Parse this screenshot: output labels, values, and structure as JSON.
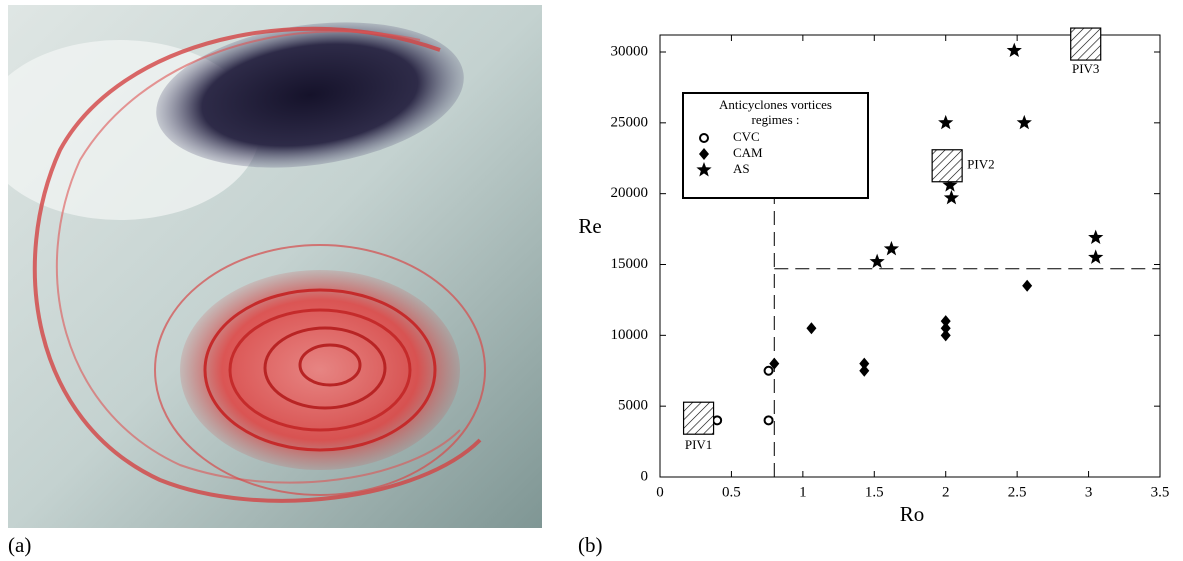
{
  "panel_labels": [
    "(a)",
    "(b)"
  ],
  "chart_data": {
    "type": "scatter",
    "x_label": "Ro",
    "y_label": "Re",
    "xlim": [
      0,
      3.5
    ],
    "ylim": [
      0,
      31200
    ],
    "xticks": [
      0,
      0.5,
      1,
      1.5,
      2,
      2.5,
      3,
      3.5
    ],
    "yticks": [
      0,
      5000,
      10000,
      15000,
      20000,
      25000,
      30000
    ],
    "legend_title": [
      "Anticyclones vortices",
      "regimes :"
    ],
    "series": [
      {
        "name": "CVC",
        "marker": "open-circle",
        "color": "#000000",
        "x": [
          0.4,
          0.76,
          0.76
        ],
        "values": [
          4000,
          4000,
          7500
        ]
      },
      {
        "name": "CAM",
        "marker": "diamond",
        "color": "#000000",
        "x": [
          0.8,
          1.06,
          1.43,
          1.43,
          2.0,
          2.0,
          2.0,
          2.57
        ],
        "values": [
          8000,
          10500,
          8000,
          7500,
          11000,
          10500,
          10000,
          13500
        ]
      },
      {
        "name": "AS",
        "marker": "star",
        "color": "#000000",
        "x": [
          1.52,
          1.62,
          2.0,
          2.03,
          2.04,
          2.48,
          2.55,
          3.05,
          3.05
        ],
        "values": [
          15200,
          16100,
          25000,
          20600,
          19700,
          30100,
          25000,
          16900,
          15500
        ]
      }
    ],
    "dashed_lines": {
      "x": 0.8,
      "y": 14700
    },
    "annotations": [
      {
        "text": "PIV1",
        "x": 0.27,
        "y": 4150
      },
      {
        "text": "PIV2",
        "x": 2.01,
        "y": 21970
      },
      {
        "text": "PIV3",
        "x": 2.98,
        "y": 30560
      }
    ]
  }
}
